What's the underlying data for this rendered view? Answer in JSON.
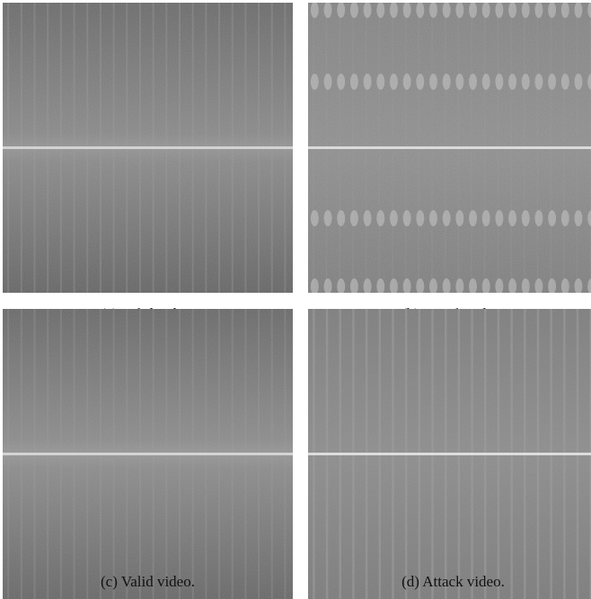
{
  "figure": {
    "panels": [
      {
        "id": "a",
        "caption": "(a) Valid video.",
        "variant": "valid-fine"
      },
      {
        "id": "b",
        "caption": "(b) Attack video.",
        "variant": "attack-blobs"
      },
      {
        "id": "c",
        "caption": "(c) Valid video.",
        "variant": "valid-fine"
      },
      {
        "id": "d",
        "caption": "(d) Attack video.",
        "variant": "attack-strong"
      }
    ]
  },
  "colors": {
    "background": "#6f6f6f",
    "bright_line": "#e8e8e8",
    "stripe": "#9a9a9a"
  }
}
